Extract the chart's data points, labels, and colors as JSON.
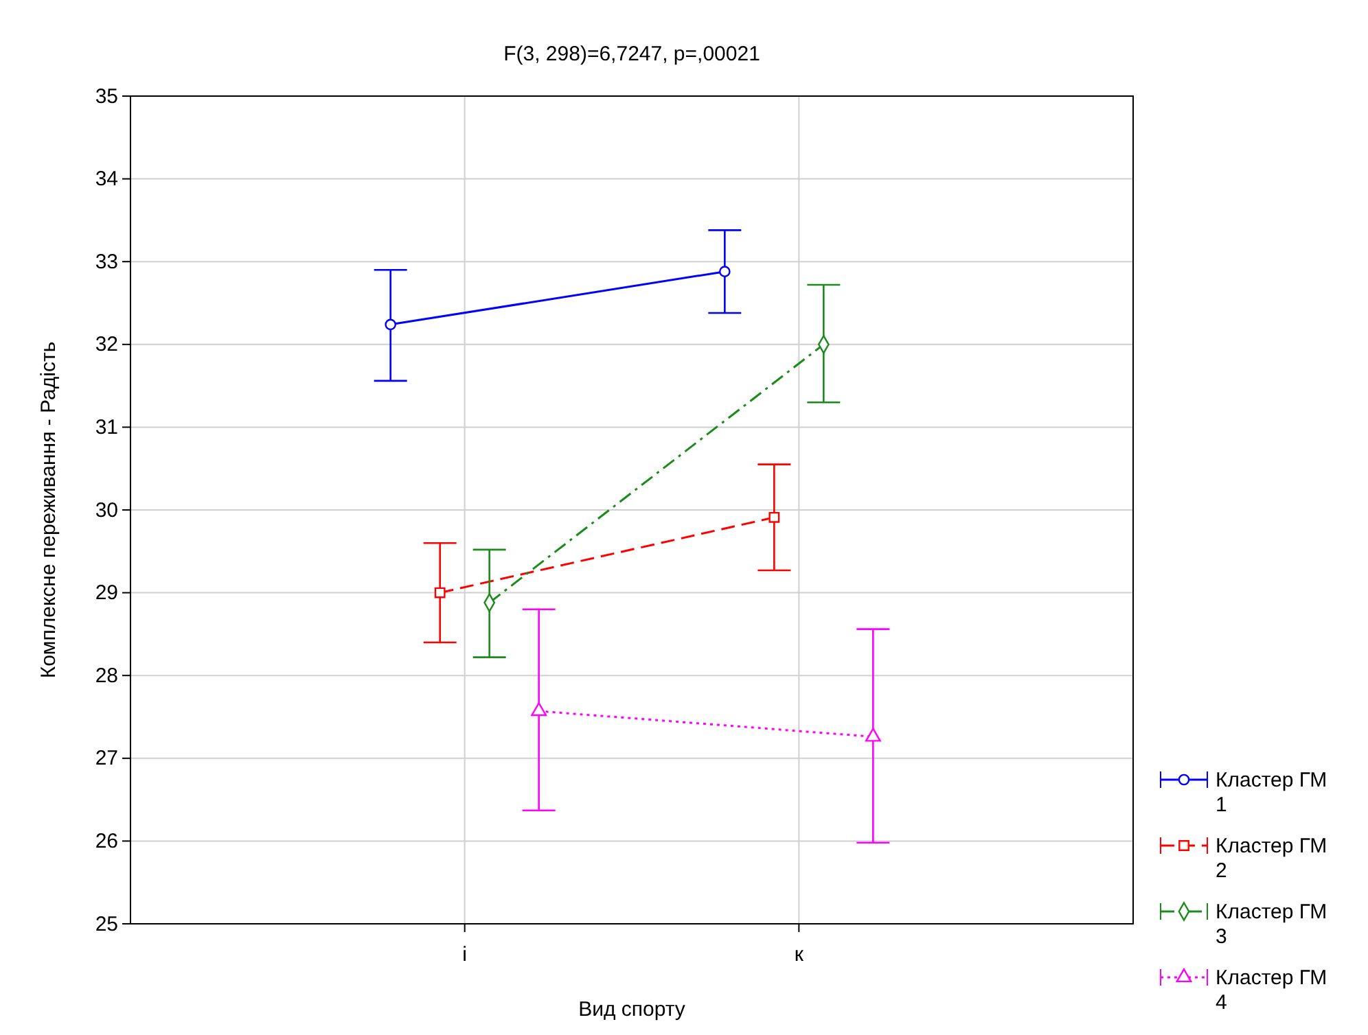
{
  "chart_data": {
    "type": "line",
    "title": "F(3, 298)=6,7247, p=,00021",
    "xlabel": "Вид спорту",
    "ylabel": "Комплексне переживання - Радість",
    "categories": [
      "і",
      "к"
    ],
    "ylim": [
      25,
      35
    ],
    "yticks": [
      25,
      26,
      27,
      28,
      29,
      30,
      31,
      32,
      33,
      34,
      35
    ],
    "grid": true,
    "legend": "bottom right",
    "series": [
      {
        "name": "Кластер ГМ 1",
        "color": "#0000ff",
        "marker": "circle",
        "line_style": "solid",
        "values": [
          32.24,
          32.88
        ],
        "errors": [
          [
            31.56,
            32.9
          ],
          [
            32.38,
            33.38
          ]
        ]
      },
      {
        "name": "Кластер ГМ 2",
        "color": "#ff0000",
        "marker": "square",
        "line_style": "dashed",
        "values": [
          29.0,
          29.91
        ],
        "errors": [
          [
            28.4,
            29.6
          ],
          [
            29.27,
            30.55
          ]
        ]
      },
      {
        "name": "Кластер ГМ 3",
        "color": "#1a8c1a",
        "marker": "diamond",
        "line_style": "dashdot",
        "values": [
          28.88,
          32.0
        ],
        "errors": [
          [
            28.22,
            29.52
          ],
          [
            31.3,
            32.72
          ]
        ]
      },
      {
        "name": "Кластер ГМ 4",
        "color": "#ff00ff",
        "marker": "triangle",
        "line_style": "dotted",
        "values": [
          27.57,
          27.26
        ],
        "errors": [
          [
            26.37,
            28.8
          ],
          [
            25.98,
            28.56
          ]
        ]
      }
    ]
  }
}
